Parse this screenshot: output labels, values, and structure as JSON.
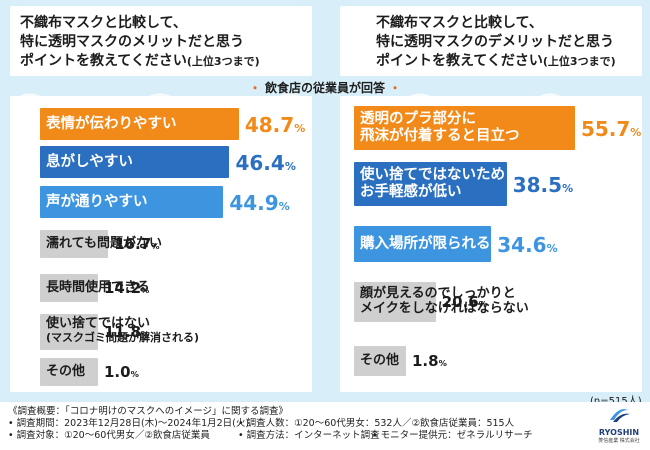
{
  "header": {
    "left_question": [
      "不織布マスクと比較して、",
      "特に透明マスクのメリットだと思う",
      "ポイントを教えてください"
    ],
    "left_suffix": "(上位3つまで)",
    "right_question": [
      "不織布マスクと比較して、",
      "特に透明マスクのデメリットだと思う",
      "ポイントを教えてください"
    ],
    "right_suffix": "(上位3つまで)",
    "subtitle": "飲食店の従業員が回答",
    "sample_note": "(n=515人)"
  },
  "colors": {
    "orange": "#f28a1a",
    "blue_dark": "#2a6fc0",
    "blue_mid": "#3d95e0",
    "gray": "#cfcfcf"
  },
  "chart_data": [
    {
      "type": "bar",
      "title": "メリット",
      "categories": [
        "表情が伝わりやすい",
        "息がしやすい",
        "声が通りやすい",
        "濡れても問題がない",
        "長時間使用できる",
        "使い捨てではない(マスクゴミ問題が解消される)",
        "その他"
      ],
      "label_lines": [
        [
          "表情が伝わりやすい"
        ],
        [
          "息がしやすい"
        ],
        [
          "声が通りやすい"
        ],
        [
          "濡れても問題がない"
        ],
        [
          "長時間使用できる"
        ],
        [
          "使い捨てではない",
          "(マスクゴミ問題が解消される)"
        ],
        [
          "その他"
        ]
      ],
      "values": [
        48.7,
        46.4,
        44.9,
        16.7,
        14.2,
        11.8,
        1.0
      ],
      "value_labels": [
        "48.7",
        "46.4",
        "44.9",
        "16.7",
        "14.2",
        "11.8",
        "1.0"
      ],
      "unit": "%",
      "ylim": [
        0,
        60
      ]
    },
    {
      "type": "bar",
      "title": "デメリット",
      "categories": [
        "透明のプラ部分に飛沫が付着すると目立つ",
        "使い捨てではないためお手軽感が低い",
        "購入場所が限られる",
        "顔が見えるのでしっかりとメイクをしなければならない",
        "その他"
      ],
      "label_lines": [
        [
          "透明のプラ部分に",
          "飛沫が付着すると目立つ"
        ],
        [
          "使い捨てではないため",
          "お手軽感が低い"
        ],
        [
          "購入場所が限られる"
        ],
        [
          "顔が見えるのでしっかりと",
          "メイクをしなければならない"
        ],
        [
          "その他"
        ]
      ],
      "values": [
        55.7,
        38.5,
        34.6,
        20.6,
        1.8
      ],
      "value_labels": [
        "55.7",
        "38.5",
        "34.6",
        "20.6",
        "1.8"
      ],
      "unit": "%",
      "ylim": [
        0,
        60
      ]
    }
  ],
  "footer": {
    "lines": [
      "《調査概要：「コロナ明けのマスクへのイメージ」に関する調査》",
      "• 調査期間：2023年12月28日(木)〜2024年1月2日(火)",
      "• 調査対象：①20〜60代男女／②飲食店従業員"
    ],
    "col2": [
      "• 調査人数：①20〜60代男女：532人／②飲食店従業員：515人",
      "• 調査方法：インターネット調査"
    ],
    "col3": "• モニター提供元：ゼネラルリサーチ",
    "logo_brand": "RYOSHIN",
    "logo_sub": "菱信産業 株式会社"
  }
}
